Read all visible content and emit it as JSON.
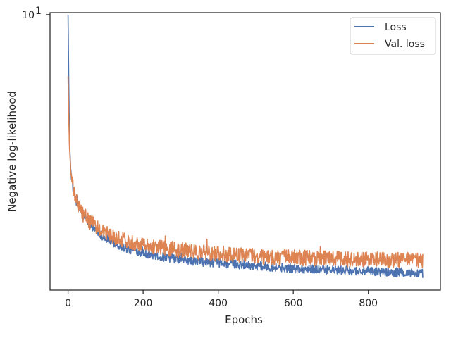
{
  "chart_data": {
    "type": "line",
    "title": "",
    "xlabel": "Epochs",
    "ylabel": "Negative log-likelihood",
    "xlim": [
      -48,
      992
    ],
    "ylim": [
      2.6,
      10.1
    ],
    "yscale": "log",
    "xticks": [
      {
        "value": 0,
        "label": "0"
      },
      {
        "value": 200,
        "label": "200"
      },
      {
        "value": 400,
        "label": "400"
      },
      {
        "value": 600,
        "label": "600"
      },
      {
        "value": 800,
        "label": "800"
      }
    ],
    "yticks": [
      {
        "value": 10,
        "label": "10",
        "exponent": "1"
      }
    ],
    "grid": false,
    "legend_position": "top-right",
    "series": [
      {
        "name": "Loss",
        "color": "#4c72b0",
        "x": [
          0,
          2,
          4,
          8,
          15,
          25,
          40,
          60,
          80,
          100,
          130,
          160,
          200,
          250,
          300,
          350,
          400,
          450,
          500,
          550,
          600,
          650,
          700,
          750,
          800,
          850,
          900,
          945
        ],
        "y": [
          10.0,
          7.0,
          5.3,
          4.6,
          4.2,
          3.95,
          3.75,
          3.58,
          3.45,
          3.35,
          3.25,
          3.18,
          3.12,
          3.06,
          3.02,
          2.99,
          2.97,
          2.95,
          2.93,
          2.91,
          2.89,
          2.88,
          2.87,
          2.86,
          2.85,
          2.84,
          2.83,
          2.82
        ],
        "noise": 0.022
      },
      {
        "name": "Val. loss",
        "color": "#dd8452",
        "x": [
          0,
          2,
          4,
          8,
          15,
          25,
          40,
          60,
          80,
          100,
          130,
          160,
          200,
          250,
          300,
          350,
          400,
          450,
          500,
          550,
          600,
          650,
          700,
          750,
          800,
          850,
          900,
          945
        ],
        "y": [
          7.4,
          6.0,
          5.2,
          4.55,
          4.2,
          3.95,
          3.77,
          3.62,
          3.52,
          3.44,
          3.36,
          3.3,
          3.25,
          3.2,
          3.16,
          3.13,
          3.11,
          3.09,
          3.07,
          3.06,
          3.05,
          3.04,
          3.03,
          3.02,
          3.02,
          3.01,
          3.01,
          3.01
        ],
        "noise": 0.038
      }
    ]
  }
}
